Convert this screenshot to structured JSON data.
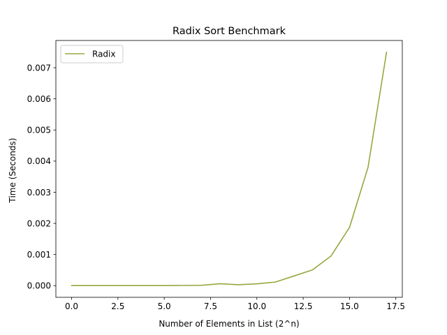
{
  "chart_data": {
    "type": "line",
    "title": "Radix Sort Benchmark",
    "xlabel": "Number of Elements in List (2^n)",
    "ylabel": "Time (Seconds)",
    "xlim": [
      -0.85,
      17.85
    ],
    "ylim": [
      -0.000375,
      0.007875
    ],
    "x_ticks": [
      0.0,
      2.5,
      5.0,
      7.5,
      10.0,
      12.5,
      15.0,
      17.5
    ],
    "x_tick_labels": [
      "0.0",
      "2.5",
      "5.0",
      "7.5",
      "10.0",
      "12.5",
      "15.0",
      "17.5"
    ],
    "y_ticks": [
      0.0,
      0.001,
      0.002,
      0.003,
      0.004,
      0.005,
      0.006,
      0.007
    ],
    "y_tick_labels": [
      "0.000",
      "0.001",
      "0.002",
      "0.003",
      "0.004",
      "0.005",
      "0.006",
      "0.007"
    ],
    "grid": false,
    "legend": "upper-left",
    "series": [
      {
        "name": "Radix",
        "color": "#95a83e",
        "x": [
          0,
          1,
          2,
          3,
          4,
          5,
          6,
          7,
          8,
          9,
          10,
          11,
          12,
          13,
          14,
          15,
          16,
          17
        ],
        "values": [
          1e-06,
          1e-06,
          1e-06,
          1e-06,
          2e-06,
          3e-06,
          6e-06,
          1e-05,
          6e-05,
          3e-05,
          5.7e-05,
          0.000115,
          0.00031,
          0.000505,
          0.00095,
          0.00187,
          0.0038,
          0.0075
        ]
      }
    ]
  }
}
